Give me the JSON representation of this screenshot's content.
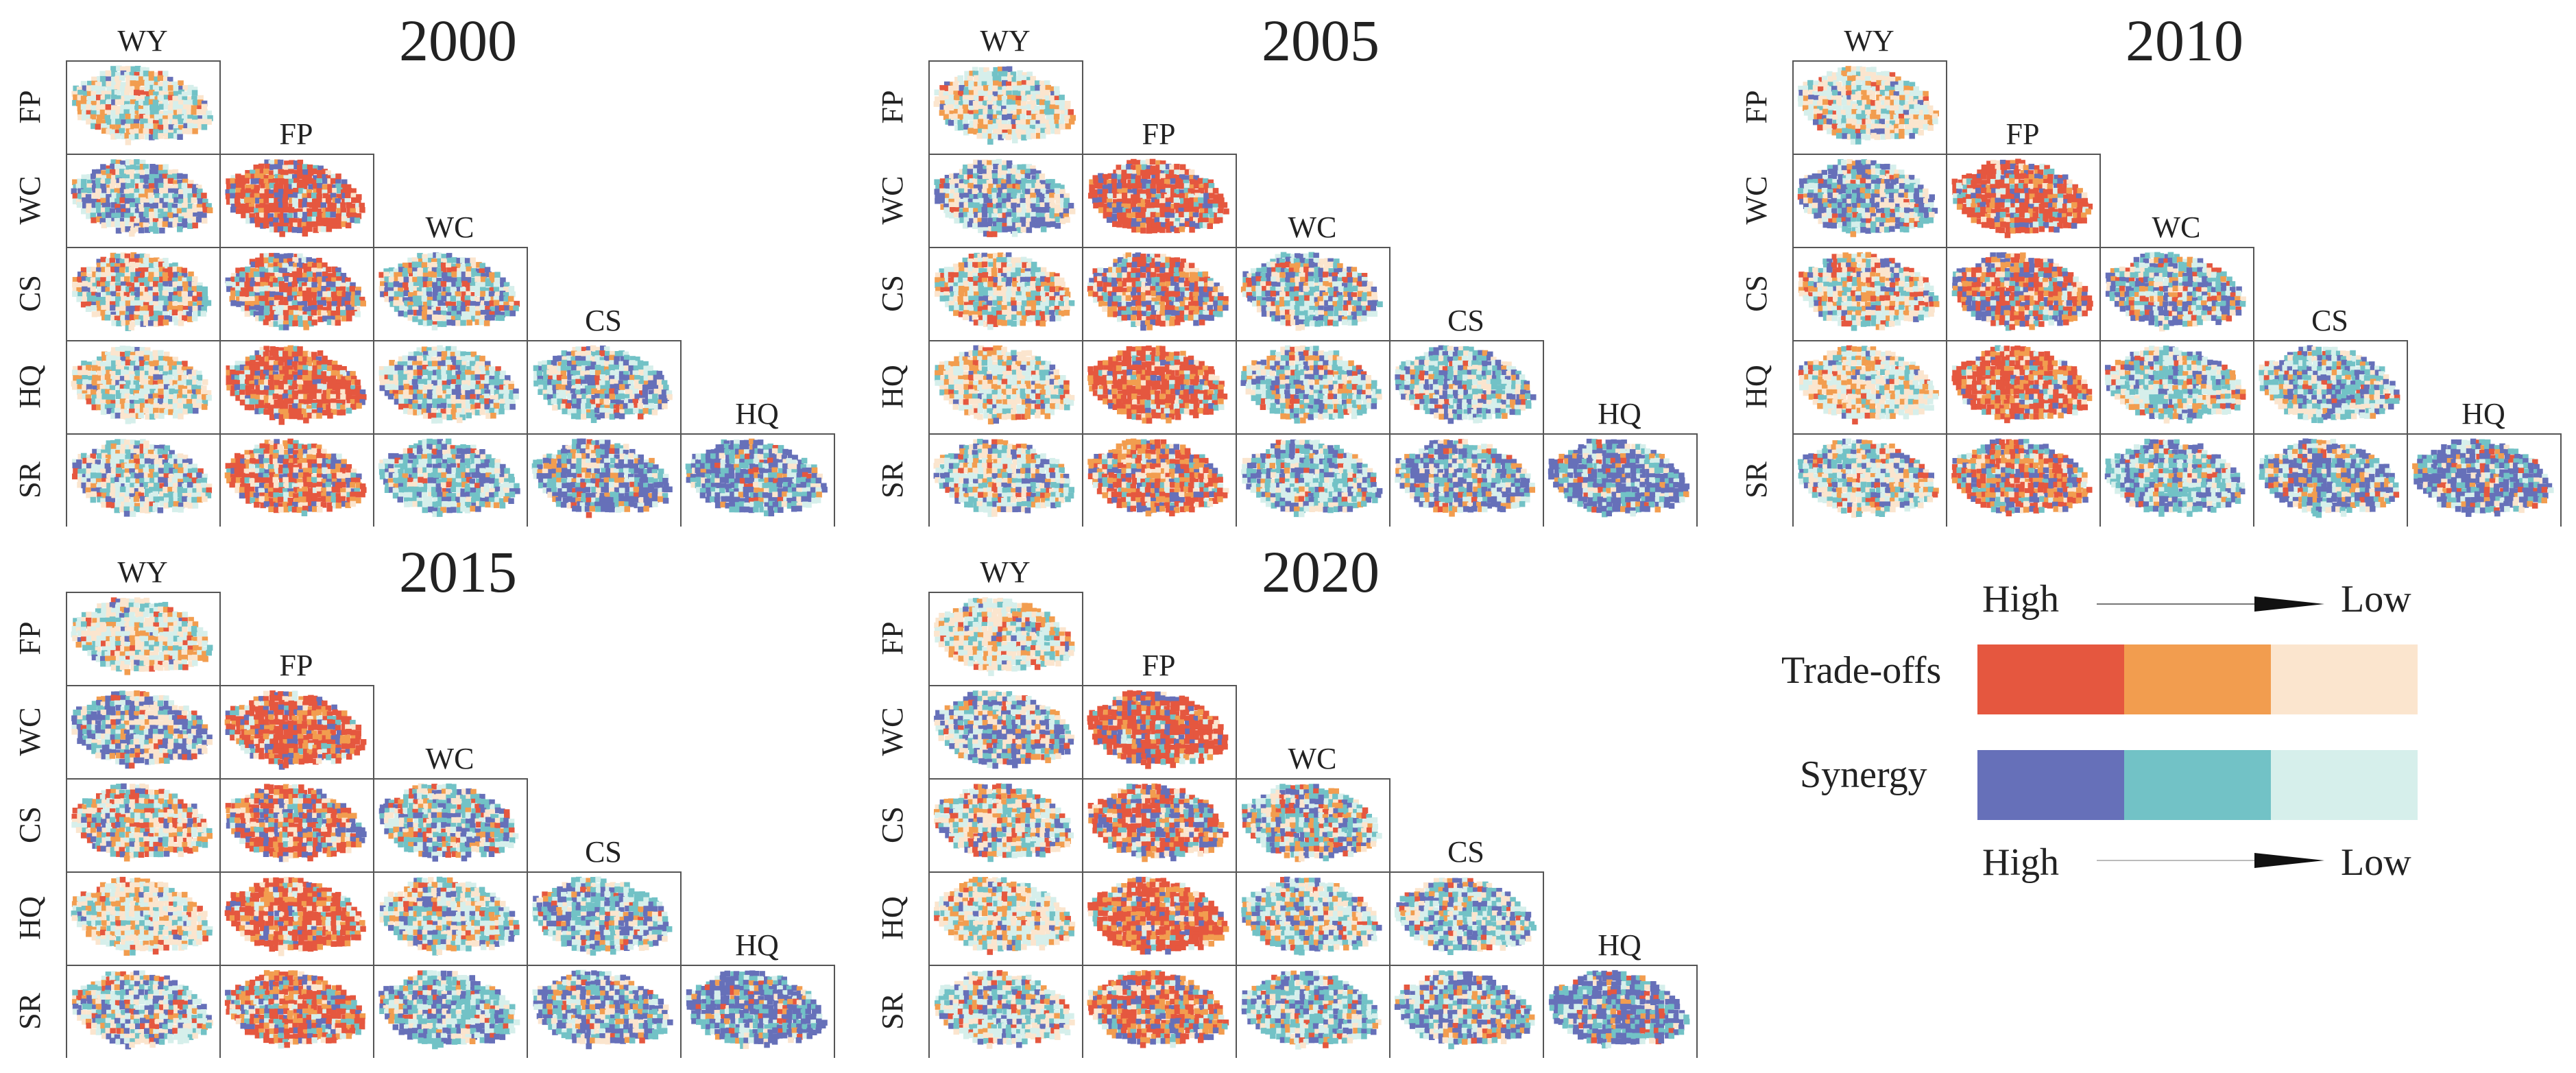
{
  "services": [
    "WY",
    "FP",
    "WC",
    "CS",
    "HQ",
    "SR"
  ],
  "panels": [
    {
      "year": "2000"
    },
    {
      "year": "2005"
    },
    {
      "year": "2010"
    },
    {
      "year": "2015"
    },
    {
      "year": "2020"
    }
  ],
  "legend": {
    "high_top": "High",
    "low_top": "Low",
    "tradeoffs_label": "Trade-offs",
    "synergy_label": "Synergy",
    "high_bottom": "High",
    "low_bottom": "Low",
    "tradeoffs_colors": [
      "#e5573f",
      "#f29d4f",
      "#fbe5ce"
    ],
    "synergy_colors": [
      "#6670b9",
      "#72c2c6",
      "#d6efeb"
    ]
  }
}
